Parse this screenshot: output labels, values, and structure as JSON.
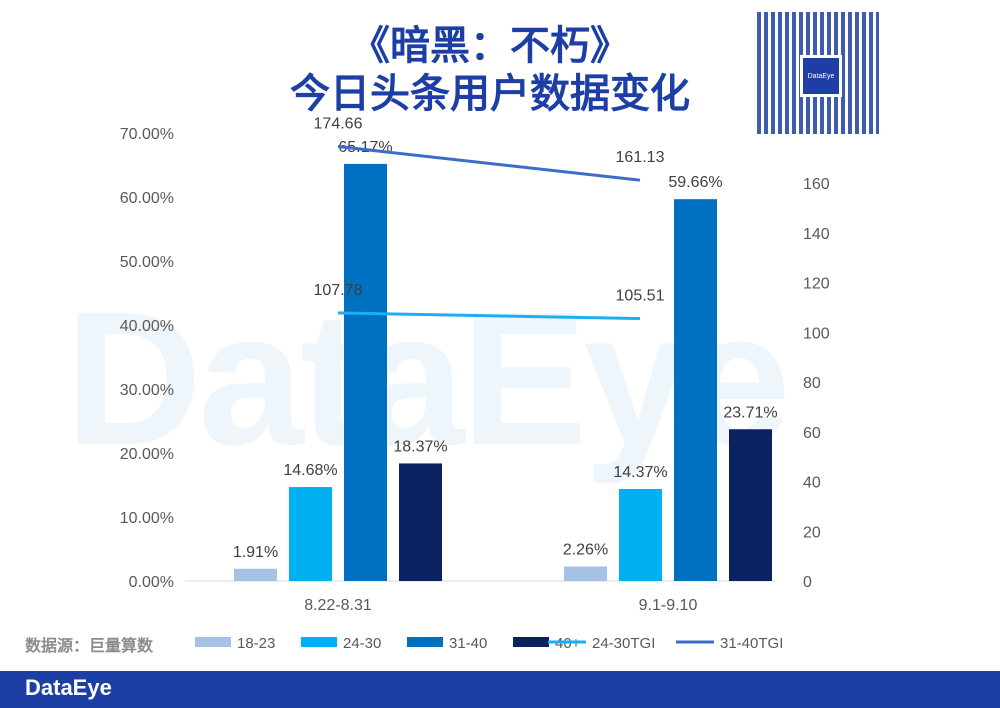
{
  "title": [
    "《暗黑：不朽》",
    "今日头条用户数据变化"
  ],
  "source": "数据源：巨量算数",
  "footer_logo": "DataEye",
  "watermark": "DataEye",
  "qr_label": "DataEye",
  "chart_data": {
    "type": "bar",
    "categories": [
      "8.22-8.31",
      "9.1-9.10"
    ],
    "series": [
      {
        "name": "18-23",
        "values": [
          1.91,
          2.26
        ],
        "color": "#a5c2e6",
        "axis": "left"
      },
      {
        "name": "24-30",
        "values": [
          14.68,
          14.37
        ],
        "color": "#00b0f0",
        "axis": "left"
      },
      {
        "name": "31-40",
        "values": [
          65.17,
          59.66
        ],
        "color": "#0070c0",
        "axis": "left"
      },
      {
        "name": "40+",
        "values": [
          18.37,
          23.71
        ],
        "color": "#0c2260",
        "axis": "left"
      }
    ],
    "line_series": [
      {
        "name": "24-30TGI",
        "values": [
          107.78,
          105.51
        ],
        "color": "#1aaff0",
        "axis": "right"
      },
      {
        "name": "31-40TGI",
        "values": [
          174.66,
          161.13
        ],
        "color": "#3b6cc8",
        "axis": "right"
      }
    ],
    "left_axis": {
      "min": 0,
      "max": 70,
      "step": 10,
      "ticks": [
        "0.00%",
        "10.00%",
        "20.00%",
        "30.00%",
        "40.00%",
        "50.00%",
        "60.00%",
        "70.00%"
      ]
    },
    "right_axis": {
      "min": 0,
      "max": 160,
      "step": 20,
      "ticks": [
        "0",
        "20",
        "40",
        "60",
        "80",
        "100",
        "120",
        "140",
        "160"
      ]
    },
    "legend_position": "bottom"
  }
}
